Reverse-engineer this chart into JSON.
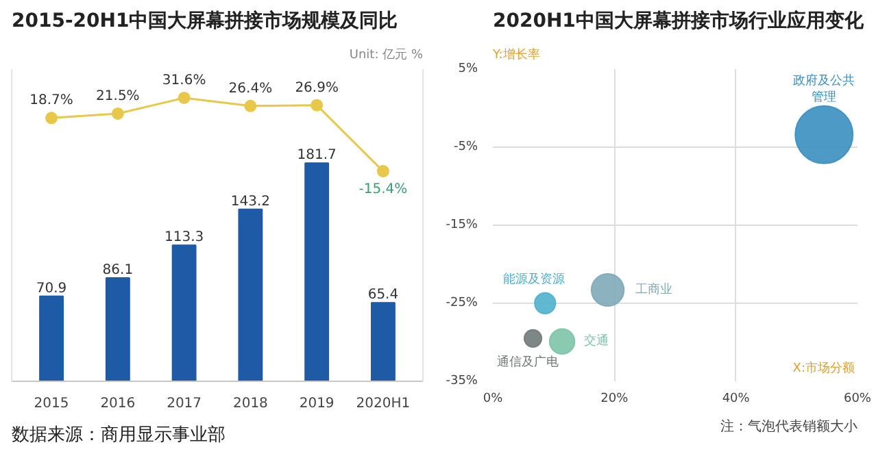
{
  "chart_data": [
    {
      "type": "bar",
      "title": "2015-20H1中国大屏幕拼接市场规模及同比",
      "annotations": [
        "Unit: 亿元 %",
        "数据来源：商用显示事业部"
      ],
      "categories": [
        "2015",
        "2016",
        "2017",
        "2018",
        "2019",
        "2020H1"
      ],
      "series": [
        {
          "type": "bar",
          "color": "#1f5aa6",
          "values": [
            70.9,
            86.1,
            113.3,
            143.2,
            181.7,
            65.4
          ]
        },
        {
          "type": "line",
          "axis": "y2",
          "color": "#e8c84a",
          "values": [
            18.7,
            21.5,
            31.6,
            26.4,
            26.9,
            -15.4
          ],
          "value_labels": [
            "18.7%",
            "21.5%",
            "31.6%",
            "26.4%",
            "26.9%",
            "-15.4%"
          ]
        }
      ],
      "data_labels": true,
      "ylim": [
        0,
        260
      ],
      "y2lim": [
        -150,
        50
      ],
      "tick_labels": "x",
      "grid": false,
      "marker": "circle"
    },
    {
      "type": "bubble",
      "title": "2020H1中国大屏幕拼接市场行业应用变化",
      "xlabel": "X:市场分额",
      "ylabel": "Y:增长率",
      "annotations": [
        "注：气泡代表销额大小"
      ],
      "series": [
        {
          "name": "政府及公共管理",
          "color": "#3a8fc0",
          "x": [
            54.5
          ],
          "values": [
            -3.4
          ],
          "sizes": [
            1
          ]
        },
        {
          "name": "工商业",
          "color": "#7fa9b8",
          "x": [
            18.9
          ],
          "values": [
            -23.3
          ],
          "sizes": [
            0.32
          ]
        },
        {
          "name": "能源及资源",
          "color": "#4fb0cc",
          "x": [
            8.6
          ],
          "values": [
            -25.0
          ],
          "sizes": [
            0.13
          ]
        },
        {
          "name": "通信及广电",
          "color": "#707a78",
          "x": [
            6.6
          ],
          "values": [
            -29.5
          ],
          "sizes": [
            0.09
          ]
        },
        {
          "name": "交通",
          "color": "#7cc4a8",
          "x": [
            11.4
          ],
          "values": [
            -29.9
          ],
          "sizes": [
            0.19
          ]
        }
      ],
      "xlim": [
        0,
        60
      ],
      "ylim": [
        -35,
        5
      ],
      "xticks": [
        {
          "value": 0,
          "label": "0%"
        },
        {
          "value": 20,
          "label": "20%"
        },
        {
          "value": 40,
          "label": "40%"
        },
        {
          "value": 60,
          "label": "60%"
        }
      ],
      "yticks": [
        {
          "value": -35,
          "label": "-35%"
        },
        {
          "value": -25,
          "label": "-25%"
        },
        {
          "value": -15,
          "label": "-15%"
        },
        {
          "value": -5,
          "label": "-5%"
        },
        {
          "value": 5,
          "label": "5%"
        }
      ],
      "grid": true
    }
  ]
}
